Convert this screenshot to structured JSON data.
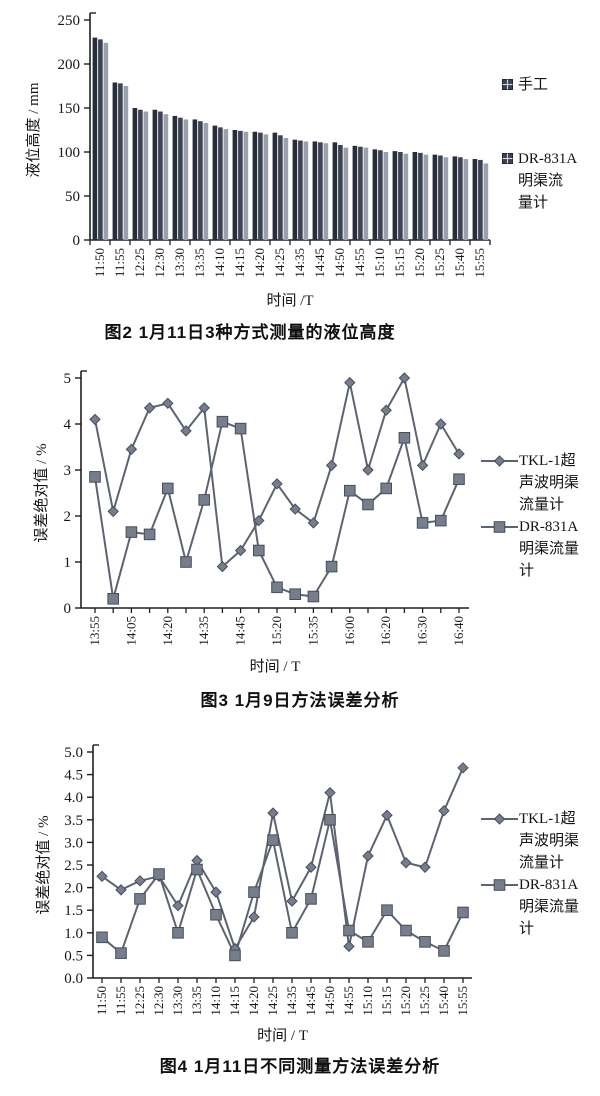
{
  "page": {
    "background": "#ffffff"
  },
  "colors": {
    "axis": "#1f1f1f",
    "text": "#141414",
    "line_series": "#5d6470",
    "marker_fill": "#767d8b",
    "marker_stroke": "#474e5b",
    "bar_colors": [
      "#272d3b",
      "#3d4354",
      "#9aa1ab"
    ],
    "checker_fill": "#3a4150",
    "checker_grid": "#d8d8d8"
  },
  "chart_data": [
    {
      "type": "bar",
      "title": "图2  1月11日3种方式测量的液位高度",
      "xlabel": "时间 /T",
      "ylabel": "液位高度 / mm",
      "ylim": [
        0,
        250
      ],
      "yticks": [
        0,
        50,
        100,
        150,
        200,
        250
      ],
      "ytick_labels": [
        "0",
        "50",
        "100",
        "150",
        "200",
        "250"
      ],
      "grid": false,
      "legend_position": "right",
      "categories": [
        "11:50",
        "11:55",
        "12:25",
        "12:30",
        "13:30",
        "13:35",
        "14:10",
        "14:15",
        "14:20",
        "14:25",
        "14:35",
        "14:45",
        "14:50",
        "14:55",
        "15:10",
        "15:15",
        "15:20",
        "15:25",
        "15:40",
        "15:55"
      ],
      "series": [
        {
          "name": "手工",
          "values": [
            230,
            179,
            150,
            148,
            141,
            137,
            130,
            125,
            123,
            122,
            114,
            112,
            111,
            107,
            103,
            101,
            100,
            97,
            95,
            92
          ]
        },
        {
          "name": "",
          "values": [
            228,
            178,
            148,
            146,
            139,
            135,
            128,
            124,
            122,
            119,
            113,
            111,
            108,
            106,
            102,
            100,
            99,
            96,
            94,
            91
          ]
        },
        {
          "name": "DR-831A明渠流量计",
          "values": [
            224,
            175,
            146,
            143,
            137,
            133,
            126,
            123,
            120,
            116,
            112,
            110,
            105,
            105,
            100,
            98,
            97,
            94,
            92,
            87
          ]
        }
      ],
      "legend": [
        {
          "marker": "checker-square",
          "lines": [
            "手工"
          ]
        },
        {
          "marker": "checker-square",
          "lines": [
            "DR-831A",
            "明渠流",
            "量计"
          ]
        }
      ]
    },
    {
      "type": "line",
      "title": "图3  1月9日方法误差分析",
      "xlabel": "时间 / T",
      "ylabel": "误差绝对值 / %",
      "ylim": [
        0,
        5
      ],
      "yticks": [
        0,
        1,
        2,
        3,
        4,
        5
      ],
      "ytick_labels": [
        "0",
        "1",
        "2",
        "3",
        "4",
        "5"
      ],
      "grid": false,
      "legend_position": "right",
      "x_tick_labels": [
        "13:55",
        "",
        "14:05",
        "",
        "14:20",
        "",
        "14:35",
        "",
        "14:45",
        "",
        "15:20",
        "",
        "15:35",
        "",
        "16:00",
        "",
        "16:20",
        "",
        "16:30",
        "",
        "16:40"
      ],
      "series": [
        {
          "name": "TKL-1超声波明渠流量计",
          "marker": "diamond",
          "values": [
            4.1,
            2.1,
            3.45,
            4.35,
            4.45,
            3.85,
            4.35,
            0.9,
            1.25,
            1.9,
            2.7,
            2.15,
            1.85,
            3.1,
            4.9,
            3.0,
            4.3,
            5.0,
            3.1,
            4.0,
            3.35
          ]
        },
        {
          "name": "DR-831A明渠流量计",
          "marker": "square",
          "values": [
            2.85,
            0.2,
            1.65,
            1.6,
            2.6,
            1.0,
            2.35,
            4.05,
            3.9,
            1.25,
            0.45,
            0.3,
            0.25,
            0.9,
            2.55,
            2.25,
            2.6,
            3.7,
            1.85,
            1.9,
            2.8
          ]
        }
      ],
      "legend": [
        {
          "marker": "diamond",
          "lines": [
            "TKL-1超",
            "声波明渠",
            "流量计"
          ]
        },
        {
          "marker": "square",
          "lines": [
            "DR-831A",
            "明渠流量",
            "计"
          ]
        }
      ]
    },
    {
      "type": "line",
      "title": "图4  1月11日不同测量方法误差分析",
      "xlabel": "时间 / T",
      "ylabel": "误差绝对值 / %",
      "ylim": [
        0,
        5
      ],
      "yticks": [
        0,
        0.5,
        1,
        1.5,
        2,
        2.5,
        3,
        3.5,
        4,
        4.5,
        5
      ],
      "ytick_labels": [
        "0.0",
        "0.5",
        "1.0",
        "1.5",
        "2.0",
        "2.5",
        "3.0",
        "3.5",
        "4.0",
        "4.5",
        "5.0"
      ],
      "grid": false,
      "legend_position": "right",
      "x_tick_labels": [
        "11:50",
        "11:55",
        "12:25",
        "12:30",
        "13:30",
        "13:35",
        "14:10",
        "14:15",
        "14:20",
        "14:25",
        "14:35",
        "14:45",
        "14:50",
        "14:55",
        "15:10",
        "15:15",
        "15:20",
        "15:25",
        "15:40",
        "15:55"
      ],
      "series": [
        {
          "name": "TKL-1超声波明渠流量计",
          "marker": "diamond",
          "values": [
            2.25,
            1.95,
            2.15,
            2.25,
            1.6,
            2.6,
            1.9,
            0.65,
            1.35,
            3.65,
            1.7,
            2.45,
            4.1,
            0.7,
            2.7,
            3.6,
            2.55,
            2.45,
            3.7,
            4.65
          ]
        },
        {
          "name": "DR-831A明渠流量计",
          "marker": "square",
          "values": [
            0.9,
            0.55,
            1.75,
            2.3,
            1.0,
            2.4,
            1.4,
            0.5,
            1.9,
            3.05,
            1.0,
            1.75,
            3.5,
            1.05,
            0.8,
            1.5,
            1.05,
            0.8,
            0.6,
            1.45
          ]
        }
      ],
      "legend": [
        {
          "marker": "diamond",
          "lines": [
            "TKL-1超",
            "声波明渠",
            "流量计"
          ]
        },
        {
          "marker": "square",
          "lines": [
            "DR-831A",
            "明渠流量",
            "计"
          ]
        }
      ]
    }
  ]
}
